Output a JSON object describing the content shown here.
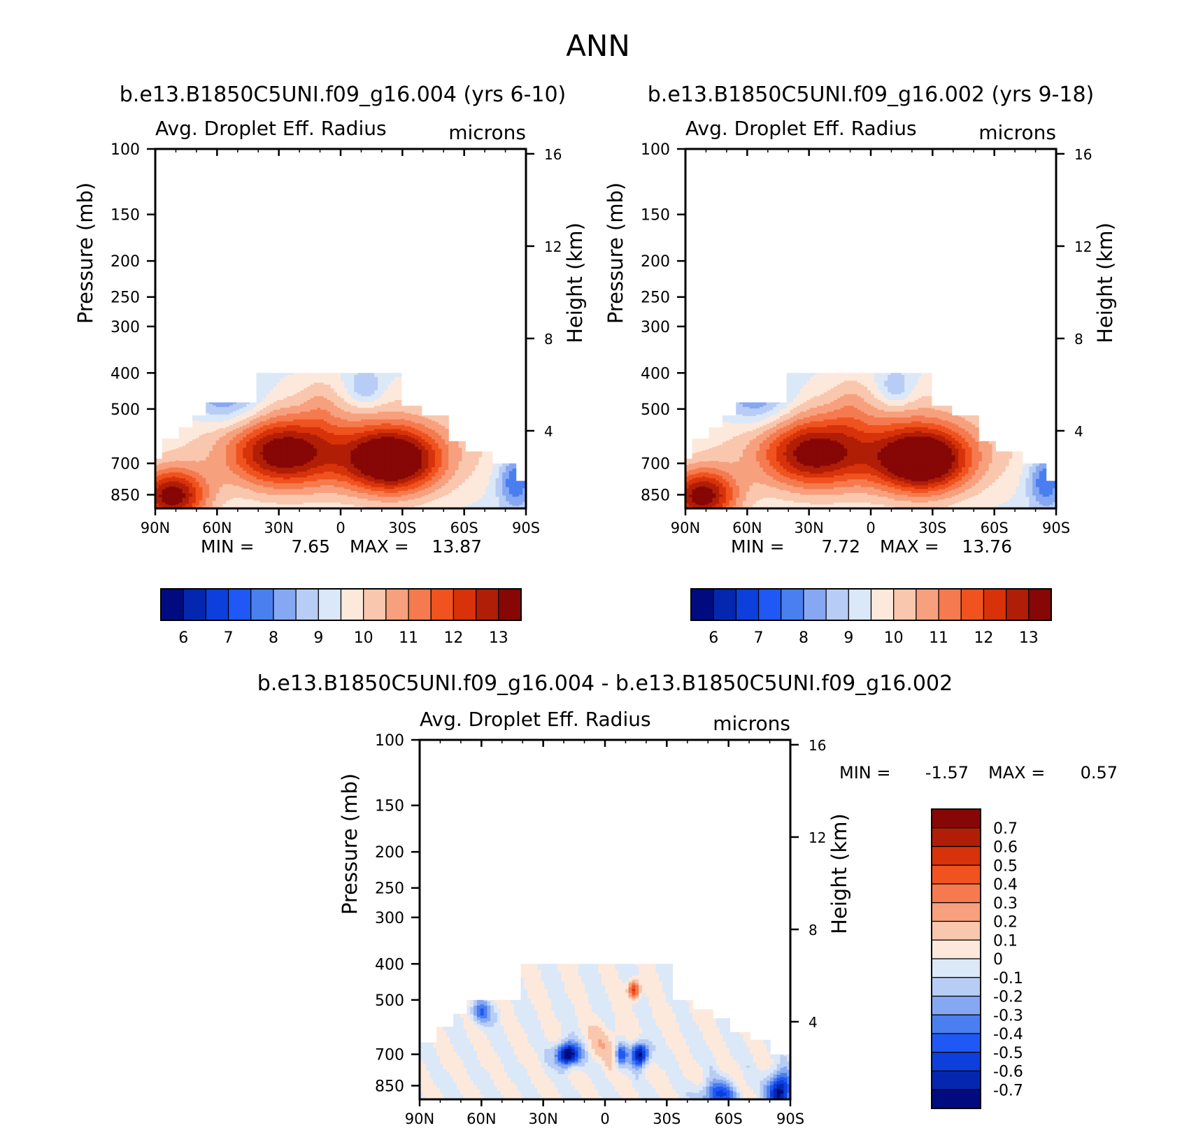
{
  "main_title": "ANN",
  "chart_data": [
    {
      "type": "heatmap",
      "title": "b.e13.B1850C5UNI.f09_g16.004 (yrs 6-10)",
      "variable": "Avg. Droplet Eff. Radius",
      "units": "microns",
      "ylabel": "Pressure (mb)",
      "ylabel_right": "Height (km)",
      "x_ticks": [
        "90N",
        "60N",
        "30N",
        "0",
        "30S",
        "60S",
        "90S"
      ],
      "y_ticks": [
        100,
        150,
        200,
        250,
        300,
        400,
        500,
        700,
        850
      ],
      "y_ticks_right": [
        16,
        12,
        8,
        4
      ],
      "ylim": [
        100,
        1000
      ],
      "y_scale": "log",
      "min_label": "MIN =",
      "max_label": "MAX =",
      "min": "7.65",
      "max": "13.87",
      "colorbar_levels": [
        "6",
        "7",
        "8",
        "9",
        "10",
        "11",
        "12",
        "13"
      ],
      "colorbar_orientation": "horizontal"
    },
    {
      "type": "heatmap",
      "title": "b.e13.B1850C5UNI.f09_g16.002 (yrs 9-18)",
      "variable": "Avg. Droplet Eff. Radius",
      "units": "microns",
      "ylabel": "Pressure (mb)",
      "ylabel_right": "Height (km)",
      "x_ticks": [
        "90N",
        "60N",
        "30N",
        "0",
        "30S",
        "60S",
        "90S"
      ],
      "y_ticks": [
        100,
        150,
        200,
        250,
        300,
        400,
        500,
        700,
        850
      ],
      "y_ticks_right": [
        16,
        12,
        8,
        4
      ],
      "ylim": [
        100,
        1000
      ],
      "y_scale": "log",
      "min_label": "MIN =",
      "max_label": "MAX =",
      "min": "7.72",
      "max": "13.76",
      "colorbar_levels": [
        "6",
        "7",
        "8",
        "9",
        "10",
        "11",
        "12",
        "13"
      ],
      "colorbar_orientation": "horizontal"
    },
    {
      "type": "heatmap",
      "title": "b.e13.B1850C5UNI.f09_g16.004 - b.e13.B1850C5UNI.f09_g16.002",
      "variable": "Avg. Droplet Eff. Radius",
      "units": "microns",
      "ylabel": "Pressure (mb)",
      "ylabel_right": "Height (km)",
      "x_ticks": [
        "90N",
        "60N",
        "30N",
        "0",
        "30S",
        "60S",
        "90S"
      ],
      "y_ticks": [
        100,
        150,
        200,
        250,
        300,
        400,
        500,
        700,
        850
      ],
      "y_ticks_right": [
        16,
        12,
        8,
        4
      ],
      "ylim": [
        100,
        1000
      ],
      "y_scale": "log",
      "min_label": "MIN =",
      "max_label": "MAX =",
      "min": "-1.57",
      "max": "0.57",
      "colorbar_levels": [
        "0.7",
        "0.6",
        "0.5",
        "0.4",
        "0.3",
        "0.2",
        "0.1",
        "0",
        "-0.1",
        "-0.2",
        "-0.3",
        "-0.4",
        "-0.5",
        "-0.6",
        "-0.7"
      ],
      "colorbar_orientation": "vertical"
    }
  ],
  "colors": {
    "abs_scale": [
      "#000b80",
      "#0527b0",
      "#0d3fdc",
      "#2058f5",
      "#4a7ff0",
      "#86a8f2",
      "#b8cdf5",
      "#dbe8f8",
      "#fde9dc",
      "#f9c7ae",
      "#f7a07e",
      "#f57a4f",
      "#f0531f",
      "#d8320a",
      "#b01e07",
      "#870707"
    ],
    "diff_scale": [
      "#870707",
      "#b01e07",
      "#d8320a",
      "#f0531f",
      "#f57a4f",
      "#f7a07e",
      "#f9c7ae",
      "#fde9dc",
      "#dbe8f8",
      "#b8cdf5",
      "#86a8f2",
      "#4a7ff0",
      "#2058f5",
      "#0d3fdc",
      "#0527b0",
      "#000b80"
    ]
  }
}
